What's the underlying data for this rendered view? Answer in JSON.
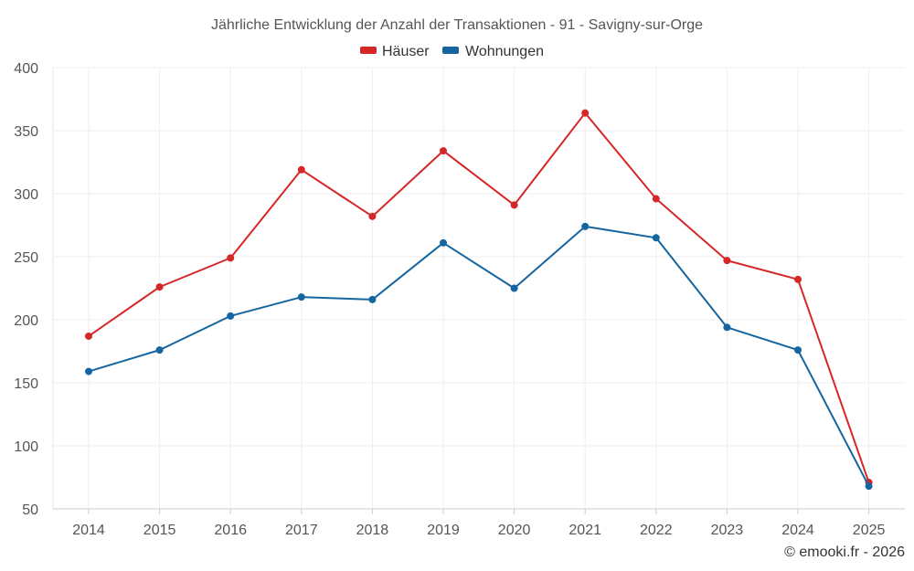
{
  "chart_data": {
    "type": "line",
    "title": "Jährliche Entwicklung der Anzahl der Transaktionen - 91 - Savigny-sur-Orge",
    "categories": [
      "2014",
      "2015",
      "2016",
      "2017",
      "2018",
      "2019",
      "2020",
      "2021",
      "2022",
      "2023",
      "2024",
      "2025"
    ],
    "series": [
      {
        "name": "Häuser",
        "color": "#d62728",
        "values": [
          187,
          226,
          249,
          319,
          282,
          334,
          291,
          364,
          296,
          247,
          232,
          71
        ]
      },
      {
        "name": "Wohnungen",
        "color": "#1565a0",
        "values": [
          159,
          176,
          203,
          218,
          216,
          261,
          225,
          274,
          265,
          194,
          176,
          68
        ]
      }
    ],
    "ylim": [
      50,
      400
    ],
    "yticks": [
      "50",
      "100",
      "150",
      "200",
      "250",
      "300",
      "350",
      "400"
    ],
    "grid": true,
    "legend_position": "top-center",
    "xlabel": "",
    "ylabel": ""
  },
  "credit": "© emooki.fr - 2026"
}
